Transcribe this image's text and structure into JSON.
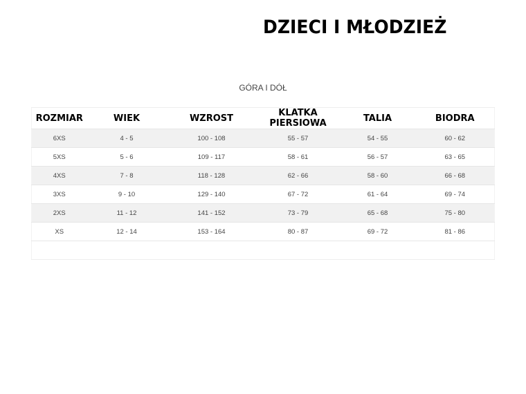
{
  "title": "DZIECI I MŁODZIEŻ",
  "subtitle": "GÓRA I DÓŁ",
  "table": {
    "headers": [
      "ROZMIAR",
      "WIEK",
      "WZROST",
      "KLATKA PIERSIOWA",
      "TALIA",
      "BIODRA"
    ],
    "rows": [
      [
        "6XS",
        "4 - 5",
        "100 - 108",
        "55 - 57",
        "54 - 55",
        "60 - 62"
      ],
      [
        "5XS",
        "5 - 6",
        "109 - 117",
        "58 - 61",
        "56 - 57",
        "63 - 65"
      ],
      [
        "4XS",
        "7 - 8",
        "118 - 128",
        "62 - 66",
        "58 - 60",
        "66 - 68"
      ],
      [
        "3XS",
        "9 - 10",
        "129 - 140",
        "67 - 72",
        "61 - 64",
        "69 - 74"
      ],
      [
        "2XS",
        "11 - 12",
        "141 - 152",
        "73 - 79",
        "65 - 68",
        "75 - 80"
      ],
      [
        "XS",
        "12 - 14",
        "153 - 164",
        "80 - 87",
        "69 - 72",
        "81 - 86"
      ]
    ]
  }
}
